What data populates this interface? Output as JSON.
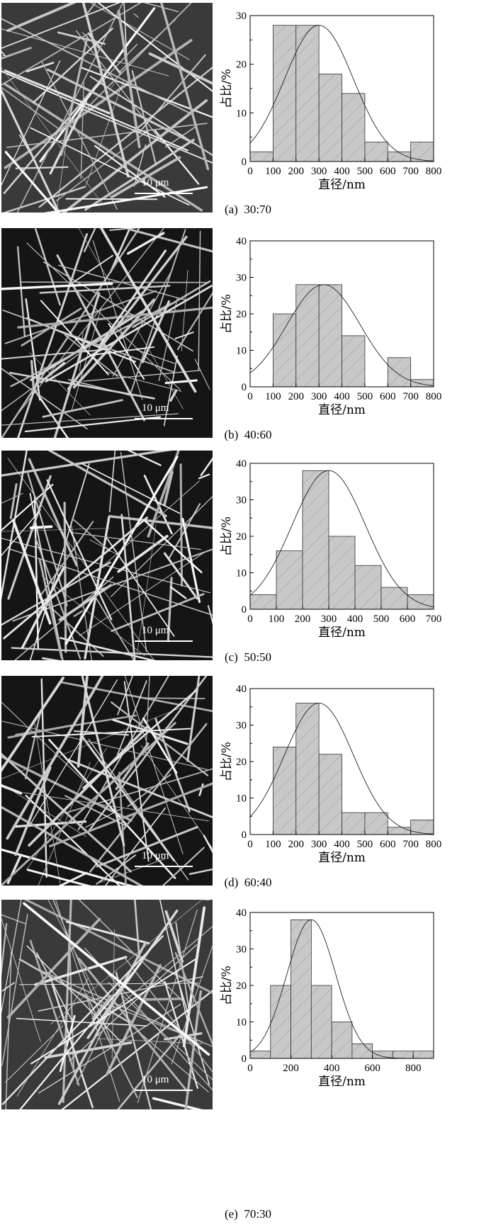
{
  "chart_data": [
    {
      "type": "bar",
      "caption_id": "(a)",
      "caption_ratio": "30:70",
      "scale_label": "10 μm",
      "xlabel": "直径/nm",
      "ylabel": "占比/%",
      "xlim": [
        0,
        800
      ],
      "ylim": [
        0,
        30
      ],
      "xticks": [
        0,
        100,
        200,
        300,
        400,
        500,
        600,
        700,
        800
      ],
      "yticks": [
        0,
        10,
        20,
        30
      ],
      "bins": [
        [
          0,
          100
        ],
        [
          100,
          200
        ],
        [
          200,
          300
        ],
        [
          300,
          400
        ],
        [
          400,
          500
        ],
        [
          500,
          600
        ],
        [
          600,
          700
        ],
        [
          700,
          800
        ]
      ],
      "values": [
        2,
        28,
        28,
        18,
        14,
        4,
        2,
        4
      ],
      "fit": {
        "mean": 300,
        "sd": 150,
        "peak": 28
      }
    },
    {
      "type": "bar",
      "caption_id": "(b)",
      "caption_ratio": "40:60",
      "scale_label": "10 μm",
      "xlabel": "直径/nm",
      "ylabel": "占比/%",
      "xlim": [
        0,
        800
      ],
      "ylim": [
        0,
        40
      ],
      "xticks": [
        0,
        100,
        200,
        300,
        400,
        500,
        600,
        700,
        800
      ],
      "yticks": [
        0,
        10,
        20,
        30,
        40
      ],
      "bins": [
        [
          100,
          200
        ],
        [
          200,
          300
        ],
        [
          300,
          400
        ],
        [
          400,
          500
        ],
        [
          600,
          700
        ],
        [
          700,
          800
        ]
      ],
      "values": [
        20,
        28,
        28,
        14,
        8,
        2
      ],
      "fit": {
        "mean": 320,
        "sd": 160,
        "peak": 28
      }
    },
    {
      "type": "bar",
      "caption_id": "(c)",
      "caption_ratio": "50:50",
      "scale_label": "10 μm",
      "xlabel": "直径/nm",
      "ylabel": "占比/%",
      "xlim": [
        0,
        700
      ],
      "ylim": [
        0,
        40
      ],
      "xticks": [
        0,
        100,
        200,
        300,
        400,
        500,
        600,
        700
      ],
      "yticks": [
        0,
        10,
        20,
        30,
        40
      ],
      "bins": [
        [
          0,
          100
        ],
        [
          100,
          200
        ],
        [
          200,
          300
        ],
        [
          300,
          400
        ],
        [
          400,
          500
        ],
        [
          500,
          600
        ],
        [
          600,
          700
        ]
      ],
      "values": [
        4,
        16,
        38,
        20,
        12,
        6,
        4
      ],
      "fit": {
        "mean": 300,
        "sd": 140,
        "peak": 38
      }
    },
    {
      "type": "bar",
      "caption_id": "(d)",
      "caption_ratio": "60:40",
      "scale_label": "10 μm",
      "xlabel": "直径/nm",
      "ylabel": "占比/%",
      "xlim": [
        0,
        800
      ],
      "ylim": [
        0,
        40
      ],
      "xticks": [
        0,
        100,
        200,
        300,
        400,
        500,
        600,
        700,
        800
      ],
      "yticks": [
        0,
        10,
        20,
        30,
        40
      ],
      "bins": [
        [
          100,
          200
        ],
        [
          200,
          300
        ],
        [
          300,
          400
        ],
        [
          400,
          500
        ],
        [
          500,
          600
        ],
        [
          600,
          700
        ],
        [
          700,
          800
        ]
      ],
      "values": [
        24,
        36,
        22,
        6,
        6,
        2,
        4
      ],
      "fit": {
        "mean": 300,
        "sd": 150,
        "peak": 36
      }
    },
    {
      "type": "bar",
      "caption_id": "(e)",
      "caption_ratio": "70:30",
      "scale_label": "10 μm",
      "xlabel": "直径/nm",
      "ylabel": "占比/%",
      "xlim": [
        0,
        900
      ],
      "ylim": [
        0,
        40
      ],
      "xticks": [
        0,
        200,
        400,
        600,
        800
      ],
      "yticks": [
        0,
        10,
        20,
        30,
        40
      ],
      "bins": [
        [
          0,
          100
        ],
        [
          100,
          200
        ],
        [
          200,
          300
        ],
        [
          300,
          400
        ],
        [
          400,
          500
        ],
        [
          500,
          600
        ],
        [
          600,
          700
        ],
        [
          700,
          800
        ],
        [
          800,
          900
        ]
      ],
      "values": [
        2,
        20,
        38,
        20,
        10,
        4,
        2,
        2,
        2
      ],
      "fit": {
        "mean": 300,
        "sd": 120,
        "peak": 38
      }
    }
  ]
}
